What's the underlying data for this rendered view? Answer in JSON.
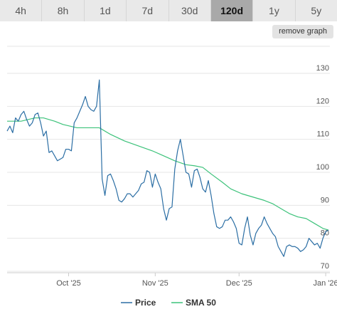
{
  "tabs": [
    {
      "label": "4h",
      "active": false
    },
    {
      "label": "8h",
      "active": false
    },
    {
      "label": "1d",
      "active": false
    },
    {
      "label": "7d",
      "active": false
    },
    {
      "label": "30d",
      "active": false
    },
    {
      "label": "120d",
      "active": true
    },
    {
      "label": "1y",
      "active": false
    },
    {
      "label": "5y",
      "active": false
    }
  ],
  "remove_graph_label": "remove graph",
  "chart_data": {
    "type": "line",
    "ylim": [
      70,
      130
    ],
    "yticks": [
      130,
      120,
      110,
      100,
      90,
      80,
      70
    ],
    "xticks": [
      "Oct '25",
      "Nov '25",
      "Dec '25",
      "Jan '26"
    ],
    "xtick_days": [
      22,
      53,
      83,
      114
    ],
    "xlim": [
      0,
      115.5
    ],
    "grid": true,
    "legend_position": "bottom",
    "series": [
      {
        "name": "Price",
        "color": "#2b6ea4",
        "points": [
          [
            0,
            112.5
          ],
          [
            1,
            114
          ],
          [
            2,
            112
          ],
          [
            3,
            116.5
          ],
          [
            4,
            115.5
          ],
          [
            5,
            117.5
          ],
          [
            6,
            118.5
          ],
          [
            7,
            116
          ],
          [
            8,
            114
          ],
          [
            9,
            115
          ],
          [
            10,
            117.5
          ],
          [
            11,
            118
          ],
          [
            12,
            115
          ],
          [
            13,
            111
          ],
          [
            14,
            112.5
          ],
          [
            15,
            106
          ],
          [
            16,
            106.5
          ],
          [
            17,
            105
          ],
          [
            18,
            103.5
          ],
          [
            19,
            104
          ],
          [
            20,
            104.5
          ],
          [
            21,
            107
          ],
          [
            22,
            107
          ],
          [
            23,
            106.5
          ],
          [
            24,
            115
          ],
          [
            25,
            116.5
          ],
          [
            26,
            118.5
          ],
          [
            27,
            120.5
          ],
          [
            28,
            123
          ],
          [
            29,
            120
          ],
          [
            30,
            119
          ],
          [
            31,
            118.5
          ],
          [
            32,
            120
          ],
          [
            33,
            128
          ],
          [
            34,
            98
          ],
          [
            35,
            93
          ],
          [
            36,
            99
          ],
          [
            37,
            99.5
          ],
          [
            38,
            97.5
          ],
          [
            39,
            95
          ],
          [
            40,
            91.5
          ],
          [
            41,
            91
          ],
          [
            42,
            92
          ],
          [
            43,
            93.5
          ],
          [
            44,
            93.5
          ],
          [
            45,
            92.5
          ],
          [
            46,
            93.5
          ],
          [
            47,
            94.5
          ],
          [
            48,
            96.5
          ],
          [
            49,
            97
          ],
          [
            50,
            100.5
          ],
          [
            51,
            100
          ],
          [
            52,
            95.5
          ],
          [
            53,
            99.5
          ],
          [
            54,
            97
          ],
          [
            55,
            95
          ],
          [
            56,
            89
          ],
          [
            57,
            85.5
          ],
          [
            58,
            89
          ],
          [
            59,
            89.5
          ],
          [
            60,
            101
          ],
          [
            61,
            106.5
          ],
          [
            62,
            110
          ],
          [
            63,
            105
          ],
          [
            64,
            100
          ],
          [
            65,
            99.5
          ],
          [
            66,
            95.5
          ],
          [
            67,
            100.5
          ],
          [
            68,
            101
          ],
          [
            69,
            98.5
          ],
          [
            70,
            95
          ],
          [
            71,
            94
          ],
          [
            72,
            97.5
          ],
          [
            73,
            93
          ],
          [
            74,
            87.5
          ],
          [
            75,
            83.5
          ],
          [
            76,
            83
          ],
          [
            77,
            83.5
          ],
          [
            78,
            85.5
          ],
          [
            79,
            85.5
          ],
          [
            80,
            86.5
          ],
          [
            81,
            85
          ],
          [
            82,
            83
          ],
          [
            83,
            78.5
          ],
          [
            84,
            78
          ],
          [
            85,
            83
          ],
          [
            86,
            86.5
          ],
          [
            87,
            81
          ],
          [
            88,
            78
          ],
          [
            89,
            81.5
          ],
          [
            90,
            83
          ],
          [
            91,
            84
          ],
          [
            92,
            86.5
          ],
          [
            93,
            84.5
          ],
          [
            94,
            83
          ],
          [
            95,
            81.5
          ],
          [
            96,
            80.5
          ],
          [
            97,
            77.5
          ],
          [
            98,
            76
          ],
          [
            99,
            74.5
          ],
          [
            100,
            77.5
          ],
          [
            101,
            78
          ],
          [
            102,
            77.5
          ],
          [
            103,
            77.5
          ],
          [
            104,
            77
          ],
          [
            105,
            76
          ],
          [
            106,
            76.5
          ],
          [
            107,
            77.5
          ],
          [
            108,
            80
          ],
          [
            109,
            79
          ],
          [
            110,
            78
          ],
          [
            111,
            78.5
          ],
          [
            112,
            77
          ],
          [
            113,
            80
          ],
          [
            114,
            82
          ],
          [
            115,
            82.5
          ]
        ]
      },
      {
        "name": "SMA 50",
        "color": "#3cc27a",
        "points": [
          [
            0,
            115.5
          ],
          [
            5,
            115.5
          ],
          [
            10,
            116.5
          ],
          [
            13,
            116.5
          ],
          [
            17,
            115.5
          ],
          [
            20,
            114.5
          ],
          [
            25,
            113.5
          ],
          [
            30,
            113.5
          ],
          [
            33,
            113.5
          ],
          [
            37,
            111.5
          ],
          [
            42,
            109.5
          ],
          [
            47,
            108
          ],
          [
            52,
            106.5
          ],
          [
            56,
            105
          ],
          [
            60,
            103.5
          ],
          [
            64,
            102.3
          ],
          [
            67,
            102
          ],
          [
            70,
            101.5
          ],
          [
            73,
            99.5
          ],
          [
            77,
            97
          ],
          [
            80,
            95
          ],
          [
            84,
            93.5
          ],
          [
            88,
            92.5
          ],
          [
            92,
            91.5
          ],
          [
            95,
            90.5
          ],
          [
            98,
            89
          ],
          [
            101,
            87.5
          ],
          [
            104,
            86.5
          ],
          [
            107,
            86
          ],
          [
            110,
            84.5
          ],
          [
            113,
            83
          ],
          [
            115,
            82.5
          ]
        ]
      }
    ]
  }
}
